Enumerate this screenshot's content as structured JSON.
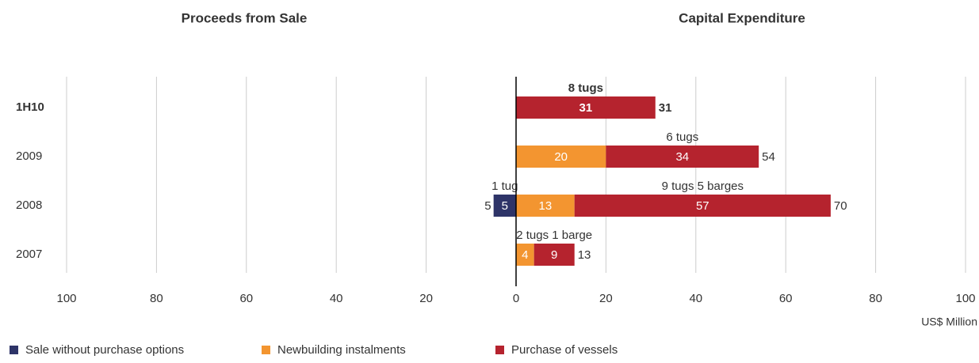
{
  "chart_data": {
    "type": "diverging-stacked-bar",
    "titles": [
      "Proceeds from Sale",
      "Capital Expenditure"
    ],
    "categories": [
      "1H10",
      "2009",
      "2008",
      "2007"
    ],
    "series": [
      {
        "name": "Sale without purchase options",
        "color": "#2e3468",
        "values": [
          null,
          null,
          -5,
          null
        ],
        "value_labels": [
          null,
          null,
          "5",
          null
        ],
        "notes": [
          null,
          null,
          "1 tug",
          null
        ]
      },
      {
        "name": "Newbuilding instalments",
        "color": "#f39530",
        "values": [
          null,
          20,
          13,
          4
        ],
        "notes": [
          null,
          null,
          null,
          null
        ]
      },
      {
        "name": "Purchase of vessels",
        "color": "#b5232e",
        "values": [
          31,
          34,
          57,
          9
        ],
        "notes": [
          "8 tugs",
          "6 tugs",
          "9 tugs 5 barges",
          "2 tugs 1 barge"
        ]
      }
    ],
    "totals": [
      31,
      54,
      70,
      13
    ],
    "left_totals": [
      null,
      null,
      5,
      null
    ],
    "xlabel": "US$ Million",
    "xlim": [
      -100,
      100
    ],
    "xticks": [
      {
        "value": -100,
        "label": "100"
      },
      {
        "value": -80,
        "label": "80"
      },
      {
        "value": -60,
        "label": "60"
      },
      {
        "value": -40,
        "label": "40"
      },
      {
        "value": -20,
        "label": "20"
      },
      0,
      20,
      40,
      60,
      80,
      100
    ],
    "grid": true,
    "legend": "bottom"
  }
}
